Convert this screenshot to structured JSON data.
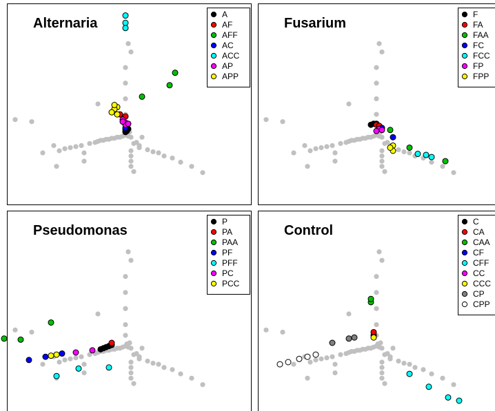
{
  "chart_data": [
    {
      "type": "scatter",
      "title": "Alternaria",
      "background_color": "#c0c0c0",
      "background": [
        [
          -40,
          75
        ],
        [
          -34,
          73
        ],
        [
          -30,
          43
        ],
        [
          -26,
          50
        ],
        [
          -24,
          45
        ],
        [
          -22,
          47
        ],
        [
          -20,
          48
        ],
        [
          -18,
          49
        ],
        [
          -16,
          50
        ],
        [
          -15,
          43
        ],
        [
          -13,
          52
        ],
        [
          -11,
          53
        ],
        [
          -10,
          54
        ],
        [
          -9,
          55
        ],
        [
          -8,
          55
        ],
        [
          -7,
          56
        ],
        [
          -6,
          56
        ],
        [
          -5,
          57
        ],
        [
          -4,
          57
        ],
        [
          -3,
          58
        ],
        [
          -2,
          58
        ],
        [
          -1,
          59
        ],
        [
          0,
          60
        ],
        [
          1,
          59
        ],
        [
          0,
          70
        ],
        [
          0,
          80
        ],
        [
          0,
          95
        ],
        [
          0,
          110
        ],
        [
          0,
          125
        ],
        [
          0.5,
          62
        ],
        [
          1,
          62
        ],
        [
          1.5,
          63
        ],
        [
          2,
          58
        ],
        [
          2,
          45
        ],
        [
          2,
          40
        ],
        [
          2,
          35
        ],
        [
          2,
          30
        ],
        [
          3,
          25
        ],
        [
          4,
          53
        ],
        [
          5,
          48
        ],
        [
          6,
          58
        ],
        [
          8,
          46
        ],
        [
          10,
          44
        ],
        [
          12,
          43
        ],
        [
          14,
          40
        ],
        [
          17,
          38
        ],
        [
          20,
          34
        ],
        [
          24,
          30
        ],
        [
          28,
          24
        ],
        [
          -25,
          30
        ],
        [
          -15,
          35
        ],
        [
          -10,
          90
        ],
        [
          1,
          148
        ],
        [
          2,
          140
        ],
        [
          5,
          50
        ],
        [
          3,
          52
        ]
      ],
      "series": [
        {
          "name": "A",
          "color": "#000000",
          "points": [
            [
              0,
              63
            ],
            [
              0,
              64
            ],
            [
              0.5,
              65
            ],
            [
              1,
              66
            ],
            [
              0.5,
              64
            ]
          ]
        },
        {
          "name": "AF",
          "color": "#ff0000",
          "points": [
            [
              -2,
              80
            ],
            [
              0,
              78
            ]
          ]
        },
        {
          "name": "AFF",
          "color": "#00c000",
          "points": [
            [
              6,
              97
            ],
            [
              16,
              108
            ],
            [
              18,
              120
            ]
          ]
        },
        {
          "name": "AC",
          "color": "#0000ff",
          "points": [
            [
              0,
              66
            ],
            [
              0,
              67
            ]
          ]
        },
        {
          "name": "ACC",
          "color": "#00ffff",
          "points": [
            [
              0,
              175
            ],
            [
              0,
              163
            ],
            [
              0,
              168
            ]
          ]
        },
        {
          "name": "AP",
          "color": "#ff00ff",
          "points": [
            [
              -1,
              75
            ],
            [
              0,
              72
            ],
            [
              0,
              70
            ],
            [
              -1,
              73
            ],
            [
              1,
              71
            ]
          ]
        },
        {
          "name": "APP",
          "color": "#ffff00",
          "points": [
            [
              -3,
              87
            ],
            [
              -4,
              85
            ],
            [
              -3,
              80
            ],
            [
              -5,
              82
            ],
            [
              -4,
              89
            ]
          ]
        }
      ]
    },
    {
      "type": "scatter",
      "title": "Fusarium",
      "background_color": "#c0c0c0",
      "background": [
        [
          -40,
          75
        ],
        [
          -34,
          73
        ],
        [
          -30,
          43
        ],
        [
          -26,
          50
        ],
        [
          -24,
          45
        ],
        [
          -22,
          47
        ],
        [
          -20,
          48
        ],
        [
          -18,
          49
        ],
        [
          -16,
          50
        ],
        [
          -15,
          43
        ],
        [
          -13,
          52
        ],
        [
          -11,
          53
        ],
        [
          -10,
          54
        ],
        [
          -9,
          55
        ],
        [
          -8,
          55
        ],
        [
          -7,
          56
        ],
        [
          -6,
          56
        ],
        [
          -5,
          57
        ],
        [
          -4,
          57
        ],
        [
          -3,
          58
        ],
        [
          -2,
          58
        ],
        [
          -1,
          59
        ],
        [
          0,
          60
        ],
        [
          1,
          59
        ],
        [
          0,
          70
        ],
        [
          0,
          80
        ],
        [
          0,
          95
        ],
        [
          0,
          110
        ],
        [
          0,
          125
        ],
        [
          0.5,
          62
        ],
        [
          1,
          62
        ],
        [
          1.5,
          63
        ],
        [
          2,
          58
        ],
        [
          2,
          45
        ],
        [
          2,
          40
        ],
        [
          2,
          35
        ],
        [
          2,
          30
        ],
        [
          3,
          25
        ],
        [
          4,
          53
        ],
        [
          5,
          48
        ],
        [
          6,
          58
        ],
        [
          8,
          46
        ],
        [
          10,
          44
        ],
        [
          12,
          43
        ],
        [
          14,
          40
        ],
        [
          17,
          38
        ],
        [
          20,
          34
        ],
        [
          24,
          30
        ],
        [
          28,
          24
        ],
        [
          -25,
          30
        ],
        [
          -15,
          35
        ],
        [
          -10,
          90
        ],
        [
          1,
          148
        ],
        [
          2,
          140
        ],
        [
          5,
          50
        ],
        [
          3,
          52
        ]
      ],
      "series": [
        {
          "name": "F",
          "color": "#000000",
          "points": [
            [
              -2,
              70
            ],
            [
              -1,
              71
            ],
            [
              0,
              71
            ]
          ]
        },
        {
          "name": "FA",
          "color": "#ff0000",
          "points": [
            [
              0,
              70
            ],
            [
              1,
              69
            ]
          ]
        },
        {
          "name": "FAA",
          "color": "#00c000",
          "points": [
            [
              12,
              48
            ],
            [
              25,
              35
            ],
            [
              5,
              65
            ]
          ]
        },
        {
          "name": "FC",
          "color": "#0000ff",
          "points": [
            [
              2,
              67
            ],
            [
              6,
              58
            ]
          ]
        },
        {
          "name": "FCC",
          "color": "#00ffff",
          "points": [
            [
              15,
              42
            ],
            [
              18,
              41
            ],
            [
              20,
              39
            ]
          ]
        },
        {
          "name": "FP",
          "color": "#ff00ff",
          "points": [
            [
              1,
              66
            ],
            [
              0,
              64
            ],
            [
              2,
              65
            ]
          ]
        },
        {
          "name": "FPP",
          "color": "#ffff00",
          "points": [
            [
              6,
              50
            ],
            [
              6,
              45
            ],
            [
              5,
              48
            ]
          ]
        }
      ]
    },
    {
      "type": "scatter",
      "title": "Pseudomonas",
      "background_color": "#c0c0c0",
      "background": [
        [
          -40,
          75
        ],
        [
          -34,
          73
        ],
        [
          -30,
          43
        ],
        [
          -26,
          50
        ],
        [
          -24,
          45
        ],
        [
          -22,
          47
        ],
        [
          -20,
          48
        ],
        [
          -18,
          49
        ],
        [
          -16,
          50
        ],
        [
          -15,
          43
        ],
        [
          -13,
          52
        ],
        [
          -11,
          53
        ],
        [
          -10,
          54
        ],
        [
          -9,
          55
        ],
        [
          -8,
          55
        ],
        [
          -7,
          56
        ],
        [
          -6,
          56
        ],
        [
          -5,
          57
        ],
        [
          -4,
          57
        ],
        [
          -3,
          58
        ],
        [
          -2,
          58
        ],
        [
          -1,
          59
        ],
        [
          0,
          60
        ],
        [
          1,
          59
        ],
        [
          0,
          70
        ],
        [
          0,
          80
        ],
        [
          0,
          95
        ],
        [
          0,
          110
        ],
        [
          0,
          125
        ],
        [
          0.5,
          62
        ],
        [
          1,
          62
        ],
        [
          1.5,
          63
        ],
        [
          2,
          58
        ],
        [
          2,
          45
        ],
        [
          2,
          40
        ],
        [
          2,
          35
        ],
        [
          2,
          30
        ],
        [
          3,
          25
        ],
        [
          4,
          53
        ],
        [
          5,
          48
        ],
        [
          6,
          58
        ],
        [
          8,
          46
        ],
        [
          10,
          44
        ],
        [
          12,
          43
        ],
        [
          14,
          40
        ],
        [
          17,
          38
        ],
        [
          20,
          34
        ],
        [
          24,
          30
        ],
        [
          28,
          24
        ],
        [
          -25,
          30
        ],
        [
          -15,
          35
        ],
        [
          -10,
          90
        ],
        [
          1,
          148
        ],
        [
          2,
          140
        ],
        [
          5,
          50
        ],
        [
          3,
          52
        ]
      ],
      "series": [
        {
          "name": "P",
          "color": "#000000",
          "points": [
            [
              -9,
              57
            ],
            [
              -8,
              58
            ],
            [
              -7,
              59
            ],
            [
              -6,
              60
            ],
            [
              -5,
              61
            ]
          ]
        },
        {
          "name": "PA",
          "color": "#ff0000",
          "points": [
            [
              -5,
              63
            ]
          ]
        },
        {
          "name": "PAA",
          "color": "#00c000",
          "points": [
            [
              -27,
              82
            ],
            [
              -44,
              67
            ],
            [
              -38,
              66
            ]
          ]
        },
        {
          "name": "PF",
          "color": "#0000ff",
          "points": [
            [
              -35,
              47
            ],
            [
              -29,
              50
            ],
            [
              -23,
              53
            ]
          ]
        },
        {
          "name": "PFF",
          "color": "#00ffff",
          "points": [
            [
              -25,
              32
            ],
            [
              -17,
              39
            ],
            [
              -6,
              40
            ]
          ]
        },
        {
          "name": "PC",
          "color": "#ff00ff",
          "points": [
            [
              -18,
              54
            ],
            [
              -12,
              56
            ]
          ]
        },
        {
          "name": "PCC",
          "color": "#ffff00",
          "points": [
            [
              -27,
              51
            ],
            [
              -25,
              52
            ]
          ]
        }
      ]
    },
    {
      "type": "scatter",
      "title": "Control",
      "background_color": "#c0c0c0",
      "background": [
        [
          -40,
          75
        ],
        [
          -34,
          73
        ],
        [
          -30,
          43
        ],
        [
          -26,
          50
        ],
        [
          -24,
          45
        ],
        [
          -22,
          47
        ],
        [
          -20,
          48
        ],
        [
          -18,
          49
        ],
        [
          -16,
          50
        ],
        [
          -15,
          43
        ],
        [
          -13,
          52
        ],
        [
          -11,
          53
        ],
        [
          -10,
          54
        ],
        [
          -9,
          55
        ],
        [
          -8,
          55
        ],
        [
          -7,
          56
        ],
        [
          -6,
          56
        ],
        [
          -5,
          57
        ],
        [
          -4,
          57
        ],
        [
          -3,
          58
        ],
        [
          -2,
          58
        ],
        [
          -1,
          59
        ],
        [
          0,
          60
        ],
        [
          1,
          59
        ],
        [
          0,
          70
        ],
        [
          0,
          80
        ],
        [
          0,
          95
        ],
        [
          0,
          110
        ],
        [
          0,
          125
        ],
        [
          0.5,
          62
        ],
        [
          1,
          62
        ],
        [
          1.5,
          63
        ],
        [
          2,
          58
        ],
        [
          2,
          45
        ],
        [
          2,
          40
        ],
        [
          2,
          35
        ],
        [
          2,
          30
        ],
        [
          3,
          25
        ],
        [
          4,
          53
        ],
        [
          5,
          48
        ],
        [
          6,
          58
        ],
        [
          8,
          46
        ],
        [
          10,
          44
        ],
        [
          12,
          43
        ],
        [
          14,
          40
        ],
        [
          17,
          38
        ],
        [
          20,
          34
        ],
        [
          24,
          30
        ],
        [
          28,
          24
        ],
        [
          -25,
          30
        ],
        [
          -15,
          35
        ],
        [
          -10,
          90
        ],
        [
          1,
          148
        ],
        [
          2,
          140
        ],
        [
          5,
          50
        ],
        [
          3,
          52
        ]
      ],
      "series": [
        {
          "name": "C",
          "color": "#000000",
          "points": [
            [
              -1,
              70
            ]
          ]
        },
        {
          "name": "CA",
          "color": "#ff0000",
          "points": [
            [
              -1,
              73
            ]
          ]
        },
        {
          "name": "CAA",
          "color": "#00c000",
          "points": [
            [
              -2,
              101
            ],
            [
              -2,
              104
            ]
          ]
        },
        {
          "name": "CF",
          "color": "#0000ff",
          "points": []
        },
        {
          "name": "CFF",
          "color": "#00ffff",
          "points": [
            [
              12,
              34
            ],
            [
              19,
              22
            ],
            [
              26,
              12
            ],
            [
              30,
              9
            ]
          ]
        },
        {
          "name": "CC",
          "color": "#ff00ff",
          "points": []
        },
        {
          "name": "CCC",
          "color": "#ffff00",
          "points": [
            [
              -1,
              68
            ]
          ]
        },
        {
          "name": "CP",
          "color": "#808080",
          "points": [
            [
              -8,
              68
            ],
            [
              -10,
              67
            ],
            [
              -16,
              63
            ]
          ]
        },
        {
          "name": "CPP",
          "color": "#ffffff",
          "points": [
            [
              -35,
              43
            ],
            [
              -32,
              45
            ],
            [
              -28,
              48
            ],
            [
              -25,
              50
            ],
            [
              -22,
              52
            ]
          ]
        }
      ]
    }
  ]
}
